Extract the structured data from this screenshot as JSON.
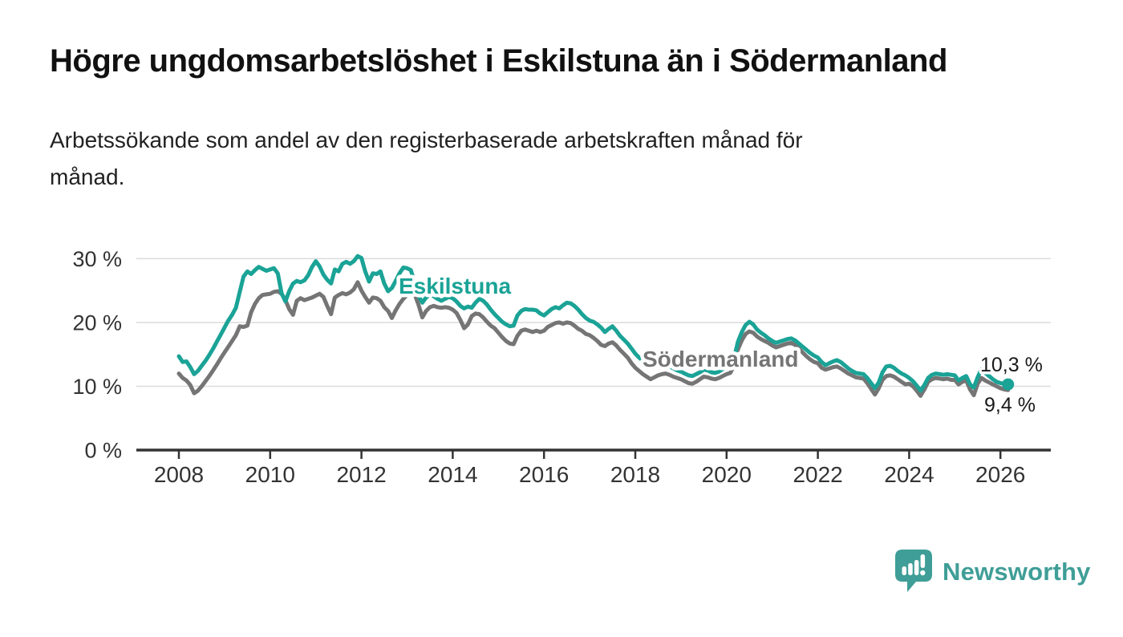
{
  "header": {
    "title": "Högre ungdomsarbetslöshet i Eskilstuna än i Södermanland",
    "subtitle_line1": "Arbetssökande som andel av den registerbaserade arbetskraften månad för",
    "subtitle_line2": "månad."
  },
  "footer": {
    "brand": "Newsworthy",
    "brand_color": "#3f9e97"
  },
  "chart_data": {
    "type": "line",
    "title": "Högre ungdomsarbetslöshet i Eskilstuna än i Södermanland",
    "subtitle": "Arbetssökande som andel av den registerbaserade arbetskraften månad för månad.",
    "frequency": "monthly",
    "x_start": "2008-01",
    "x_end": "2026-03",
    "ylim": [
      0,
      32
    ],
    "grid": "horizontal-only",
    "axis_color": "#333333",
    "gridline_color": "#dcdcdc",
    "yticks": [
      {
        "value": 0,
        "label": "0 %"
      },
      {
        "value": 10,
        "label": "10 %"
      },
      {
        "value": 20,
        "label": "20 %"
      },
      {
        "value": 30,
        "label": "30 %"
      }
    ],
    "xticks": [
      2008,
      2010,
      2012,
      2014,
      2016,
      2018,
      2020,
      2022,
      2024,
      2026
    ],
    "legend_position": "inline-labels-on-lines",
    "series": [
      {
        "name": "Eskilstuna",
        "color": "#1aa396",
        "end_value": 10.3,
        "end_label": "10,3 %",
        "end_marker": true,
        "values": [
          14.7,
          13.8,
          13.9,
          13.0,
          11.9,
          12.4,
          13.2,
          14.0,
          14.9,
          15.9,
          17.0,
          18.1,
          19.2,
          20.3,
          21.2,
          22.3,
          24.8,
          27.2,
          28.0,
          27.6,
          28.2,
          28.7,
          28.4,
          28.1,
          28.3,
          28.5,
          27.7,
          24.6,
          23.3,
          24.9,
          26.1,
          26.5,
          26.3,
          26.6,
          27.4,
          28.7,
          29.6,
          28.8,
          27.5,
          26.7,
          26.1,
          28.3,
          28.0,
          29.2,
          29.5,
          29.2,
          29.6,
          30.4,
          30.1,
          28.0,
          26.4,
          27.7,
          27.6,
          28.0,
          26.1,
          24.9,
          25.4,
          26.5,
          27.7,
          28.6,
          28.5,
          28.2,
          26.2,
          24.2,
          23.1,
          23.9,
          24.4,
          24.1,
          23.7,
          23.4,
          23.7,
          24.0,
          23.8,
          23.3,
          22.6,
          22.2,
          22.5,
          22.3,
          23.1,
          23.7,
          23.4,
          22.8,
          22.0,
          21.3,
          20.7,
          20.1,
          19.7,
          19.4,
          19.5,
          21.1,
          21.8,
          22.1,
          22.0,
          22.0,
          21.9,
          21.4,
          21.1,
          21.6,
          22.1,
          22.4,
          22.2,
          22.7,
          23.1,
          23.0,
          22.6,
          22.0,
          21.3,
          20.7,
          20.3,
          20.1,
          19.7,
          19.2,
          18.5,
          19.0,
          19.4,
          18.7,
          17.9,
          17.3,
          16.7,
          15.9,
          15.1,
          14.5,
          14.0,
          13.5,
          13.0,
          13.3,
          13.6,
          13.7,
          13.5,
          13.1,
          12.8,
          12.5,
          12.3,
          12.0,
          11.7,
          11.6,
          11.9,
          12.2,
          12.6,
          12.5,
          12.2,
          12.1,
          12.3,
          12.7,
          13.1,
          13.3,
          14.5,
          17.0,
          18.5,
          19.6,
          20.1,
          19.7,
          18.9,
          18.4,
          18.0,
          17.5,
          17.1,
          16.8,
          17.0,
          17.2,
          17.4,
          17.5,
          17.2,
          16.7,
          16.2,
          15.7,
          15.2,
          14.8,
          14.5,
          13.8,
          13.3,
          13.6,
          13.9,
          14.1,
          13.8,
          13.3,
          12.8,
          12.4,
          12.1,
          12.0,
          11.9,
          11.3,
          10.5,
          9.7,
          10.6,
          12.2,
          13.1,
          13.2,
          12.9,
          12.4,
          12.0,
          11.7,
          11.3,
          10.8,
          10.1,
          9.3,
          10.2,
          11.3,
          11.8,
          12.0,
          11.9,
          11.8,
          11.9,
          11.8,
          11.7,
          10.9,
          11.3,
          11.6,
          10.3,
          9.8,
          11.4,
          12.7,
          12.1,
          11.6,
          11.1,
          10.7,
          10.5,
          10.4,
          10.3
        ]
      },
      {
        "name": "Södermanland",
        "color": "#757575",
        "end_value": 9.4,
        "end_label": "9,4 %",
        "end_marker": false,
        "values": [
          12.0,
          11.3,
          10.9,
          10.2,
          8.9,
          9.3,
          10.0,
          10.8,
          11.6,
          12.5,
          13.4,
          14.4,
          15.3,
          16.2,
          17.1,
          18.0,
          19.4,
          19.3,
          19.5,
          21.6,
          22.9,
          23.8,
          24.3,
          24.4,
          24.5,
          24.8,
          24.9,
          24.5,
          23.5,
          22.1,
          21.2,
          23.4,
          23.8,
          23.5,
          23.7,
          23.9,
          24.2,
          24.5,
          24.0,
          22.6,
          21.3,
          23.9,
          24.3,
          24.6,
          24.4,
          24.7,
          25.2,
          26.3,
          25.0,
          24.0,
          23.1,
          23.9,
          23.8,
          23.4,
          22.4,
          21.8,
          20.7,
          21.9,
          22.9,
          23.7,
          24.3,
          24.9,
          24.4,
          22.8,
          20.8,
          21.8,
          22.4,
          22.6,
          22.4,
          22.3,
          22.4,
          22.3,
          22.0,
          21.5,
          20.4,
          19.1,
          19.7,
          21.0,
          21.4,
          21.3,
          20.8,
          20.1,
          19.5,
          19.1,
          18.4,
          17.7,
          17.1,
          16.7,
          16.6,
          17.9,
          18.7,
          18.9,
          18.7,
          18.5,
          18.7,
          18.5,
          18.7,
          19.3,
          19.6,
          19.9,
          20.0,
          19.8,
          20.0,
          19.9,
          19.5,
          19.0,
          18.7,
          18.2,
          18.0,
          17.6,
          17.1,
          16.5,
          16.3,
          16.7,
          16.9,
          16.4,
          15.7,
          15.1,
          14.5,
          13.6,
          12.9,
          12.4,
          11.9,
          11.5,
          11.1,
          11.4,
          11.7,
          11.9,
          12.0,
          11.8,
          11.5,
          11.3,
          11.1,
          10.8,
          10.5,
          10.4,
          10.7,
          11.1,
          11.5,
          11.4,
          11.2,
          11.1,
          11.3,
          11.6,
          11.9,
          12.1,
          13.3,
          15.8,
          17.2,
          18.2,
          18.6,
          18.4,
          17.8,
          17.4,
          17.1,
          16.8,
          16.4,
          16.1,
          16.3,
          16.5,
          16.7,
          16.8,
          16.5,
          15.9,
          15.3,
          14.7,
          14.2,
          13.8,
          13.6,
          12.9,
          12.6,
          12.8,
          13.0,
          13.1,
          12.8,
          12.4,
          12.0,
          11.7,
          11.4,
          11.3,
          11.2,
          10.5,
          9.6,
          8.7,
          9.7,
          11.0,
          11.6,
          11.7,
          11.5,
          11.1,
          10.7,
          10.3,
          10.4,
          10.0,
          9.3,
          8.5,
          9.5,
          10.7,
          11.1,
          11.3,
          11.2,
          11.1,
          11.2,
          11.0,
          11.0,
          10.3,
          10.7,
          10.9,
          9.5,
          8.6,
          10.4,
          11.3,
          10.9,
          10.6,
          10.3,
          10.0,
          9.7,
          9.5,
          9.4
        ]
      }
    ]
  }
}
